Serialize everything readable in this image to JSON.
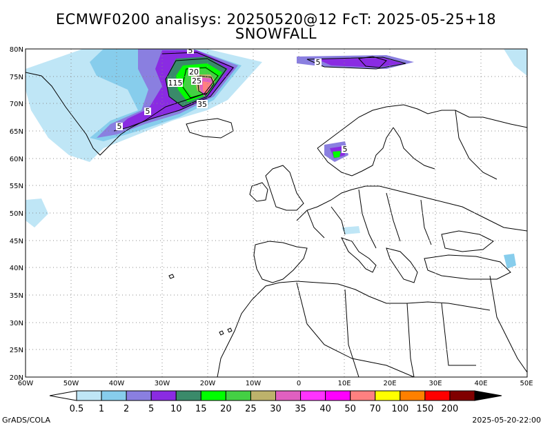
{
  "title_line1": "ECMWF0200 analisys: 20250520@12 FcT: 2025-05-25+18",
  "title_line2": "SNOWFALL",
  "lat_labels": [
    "80N",
    "75N",
    "70N",
    "65N",
    "60N",
    "55N",
    "50N",
    "45N",
    "40N",
    "35N",
    "30N",
    "25N",
    "20N"
  ],
  "lon_labels": [
    "60W",
    "50W",
    "40W",
    "30W",
    "20W",
    "10W",
    "0",
    "10E",
    "20E",
    "30E",
    "40E",
    "50E"
  ],
  "colorbar": {
    "labels": [
      "0.5",
      "1",
      "2",
      "5",
      "10",
      "15",
      "20",
      "25",
      "30",
      "35",
      "40",
      "50",
      "70",
      "100",
      "150",
      "200"
    ],
    "colors": [
      "#bfe6f6",
      "#87cdec",
      "#8a7fe0",
      "#8a2be2",
      "#3a8a6a",
      "#00ff00",
      "#44d044",
      "#bdb26b",
      "#e060c0",
      "#ff33ff",
      "#ff00ff",
      "#ff8080",
      "#ffff00",
      "#ff8000",
      "#ff0000",
      "#800000"
    ]
  },
  "contour_labels": [
    "5",
    "5",
    "20",
    "25",
    "115",
    "5",
    "35",
    "5",
    "5"
  ],
  "footer_left": "GrADS/COLA",
  "footer_right": "2025-05-20-22:00",
  "colors": {
    "land_outline": "#000000",
    "grid": "#888888",
    "background": "#ffffff"
  }
}
